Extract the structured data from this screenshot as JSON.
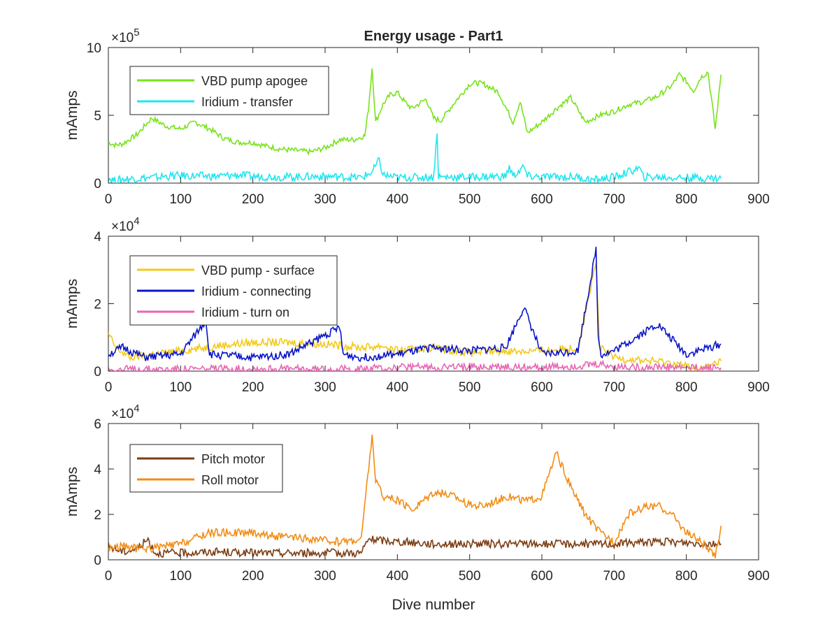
{
  "figure": {
    "title": "Energy usage - Part1",
    "xlabel": "Dive number"
  },
  "chart_data": [
    {
      "type": "line",
      "title": "Energy usage - Part1",
      "ylabel": "mAmps",
      "xlabel": "",
      "exponent": "5",
      "xlim": [
        0,
        900
      ],
      "ylim": [
        0,
        10
      ],
      "xticks": [
        0,
        100,
        200,
        300,
        400,
        500,
        600,
        700,
        800,
        900
      ],
      "yticks": [
        0,
        5,
        10
      ],
      "grid": false,
      "legend": "top-left",
      "series": [
        {
          "name": "VBD pump apogee",
          "color": "#77e31b",
          "x": [
            0,
            10,
            20,
            40,
            60,
            80,
            100,
            120,
            140,
            160,
            180,
            200,
            220,
            240,
            260,
            280,
            300,
            320,
            340,
            355,
            360,
            365,
            370,
            380,
            390,
            400,
            410,
            420,
            440,
            450,
            460,
            480,
            500,
            510,
            520,
            540,
            560,
            570,
            580,
            600,
            620,
            640,
            660,
            680,
            700,
            720,
            740,
            760,
            780,
            790,
            800,
            810,
            820,
            830,
            840,
            848
          ],
          "y": [
            3.0,
            2.8,
            2.9,
            3.6,
            4.8,
            4.2,
            4.0,
            4.5,
            4.0,
            3.3,
            3.0,
            3.0,
            2.7,
            2.5,
            2.4,
            2.3,
            2.6,
            3.2,
            3.2,
            3.5,
            5.5,
            8.5,
            4.5,
            5.8,
            6.5,
            6.7,
            6.0,
            5.5,
            6.2,
            4.8,
            4.6,
            6.0,
            7.3,
            7.4,
            7.3,
            6.7,
            4.5,
            6.0,
            3.7,
            4.5,
            5.5,
            6.3,
            4.5,
            5.0,
            5.3,
            5.8,
            6.0,
            6.4,
            7.2,
            8.0,
            7.5,
            6.8,
            7.8,
            8.2,
            4.0,
            8.0
          ]
        },
        {
          "name": "Iridium - transfer",
          "color": "#1ee6f0",
          "x": [
            0,
            10,
            20,
            40,
            60,
            80,
            100,
            150,
            180,
            200,
            250,
            300,
            350,
            365,
            375,
            380,
            400,
            450,
            455,
            457,
            460,
            500,
            550,
            555,
            560,
            575,
            580,
            600,
            650,
            670,
            700,
            735,
            740,
            800,
            848
          ],
          "y": [
            0.4,
            0.15,
            0.3,
            0.35,
            0.4,
            0.5,
            0.55,
            0.5,
            0.6,
            0.5,
            0.45,
            0.5,
            0.4,
            0.8,
            1.7,
            0.6,
            0.4,
            0.45,
            3.6,
            0.5,
            0.45,
            0.45,
            0.5,
            1.2,
            0.5,
            1.2,
            0.5,
            0.45,
            0.45,
            0.2,
            0.45,
            1.1,
            0.45,
            0.4,
            0.35
          ]
        }
      ]
    },
    {
      "type": "line",
      "title": "",
      "ylabel": "mAmps",
      "xlabel": "",
      "exponent": "4",
      "xlim": [
        0,
        900
      ],
      "ylim": [
        0,
        4
      ],
      "xticks": [
        0,
        100,
        200,
        300,
        400,
        500,
        600,
        700,
        800,
        900
      ],
      "yticks": [
        0,
        2,
        4
      ],
      "grid": false,
      "legend": "top-left",
      "series": [
        {
          "name": "VBD pump - surface",
          "color": "#f2ca1b",
          "x": [
            0,
            10,
            30,
            60,
            100,
            150,
            200,
            250,
            300,
            350,
            380,
            400,
            450,
            500,
            550,
            600,
            650,
            675,
            680,
            700,
            750,
            780,
            800,
            820,
            848
          ],
          "y": [
            1.1,
            0.7,
            0.4,
            0.5,
            0.6,
            0.75,
            0.85,
            0.85,
            0.8,
            0.7,
            0.75,
            0.6,
            0.7,
            0.55,
            0.6,
            0.6,
            0.7,
            3.2,
            0.7,
            0.4,
            0.3,
            0.25,
            0.15,
            0.05,
            0.3
          ]
        },
        {
          "name": "Iridium - connecting",
          "color": "#0a14c8",
          "x": [
            0,
            20,
            50,
            100,
            135,
            140,
            200,
            250,
            320,
            325,
            350,
            400,
            450,
            500,
            550,
            575,
            600,
            650,
            675,
            678,
            682,
            700,
            760,
            800,
            848
          ],
          "y": [
            0.5,
            0.7,
            0.4,
            0.5,
            1.5,
            0.5,
            0.4,
            0.5,
            1.3,
            0.5,
            0.4,
            0.5,
            0.7,
            0.6,
            0.7,
            1.9,
            0.5,
            0.6,
            3.6,
            1.0,
            0.5,
            0.6,
            1.4,
            0.5,
            0.8
          ]
        },
        {
          "name": "Iridium - turn on",
          "color": "#e866b4",
          "x": [
            0,
            50,
            100,
            150,
            200,
            250,
            300,
            350,
            400,
            450,
            500,
            550,
            600,
            650,
            680,
            700,
            750,
            800,
            848
          ],
          "y": [
            0.05,
            0.05,
            0.06,
            0.06,
            0.08,
            0.06,
            0.06,
            0.06,
            0.1,
            0.12,
            0.12,
            0.12,
            0.12,
            0.15,
            0.2,
            0.12,
            0.12,
            0.1,
            0.1
          ]
        }
      ]
    },
    {
      "type": "line",
      "title": "",
      "ylabel": "mAmps",
      "xlabel": "Dive number",
      "exponent": "4",
      "xlim": [
        0,
        900
      ],
      "ylim": [
        0,
        6
      ],
      "xticks": [
        0,
        100,
        200,
        300,
        400,
        500,
        600,
        700,
        800,
        900
      ],
      "yticks": [
        0,
        2,
        4,
        6
      ],
      "grid": false,
      "legend": "top-left",
      "series": [
        {
          "name": "Pitch motor",
          "color": "#7b3d13",
          "x": [
            0,
            20,
            40,
            55,
            65,
            100,
            150,
            200,
            250,
            300,
            350,
            360,
            400,
            450,
            500,
            550,
            600,
            650,
            700,
            750,
            800,
            848
          ],
          "y": [
            0.6,
            0.35,
            0.5,
            0.9,
            0.3,
            0.3,
            0.35,
            0.3,
            0.3,
            0.3,
            0.3,
            0.9,
            0.8,
            0.7,
            0.7,
            0.7,
            0.7,
            0.7,
            0.7,
            0.8,
            0.75,
            0.7
          ]
        },
        {
          "name": "Roll motor",
          "color": "#f28c13",
          "x": [
            0,
            20,
            40,
            60,
            100,
            140,
            180,
            200,
            240,
            280,
            320,
            350,
            365,
            370,
            380,
            400,
            420,
            450,
            480,
            500,
            520,
            550,
            580,
            600,
            620,
            640,
            660,
            680,
            700,
            720,
            740,
            760,
            780,
            800,
            820,
            840,
            848
          ],
          "y": [
            0.5,
            0.6,
            0.5,
            0.5,
            0.7,
            1.2,
            1.2,
            1.2,
            1.0,
            0.9,
            0.8,
            0.9,
            5.5,
            3.5,
            2.8,
            2.6,
            2.2,
            3.0,
            2.8,
            2.4,
            2.4,
            2.8,
            2.6,
            2.8,
            4.7,
            3.2,
            2.0,
            1.2,
            0.8,
            2.0,
            2.3,
            2.4,
            2.0,
            1.2,
            0.8,
            0.1,
            1.5
          ]
        }
      ]
    }
  ]
}
